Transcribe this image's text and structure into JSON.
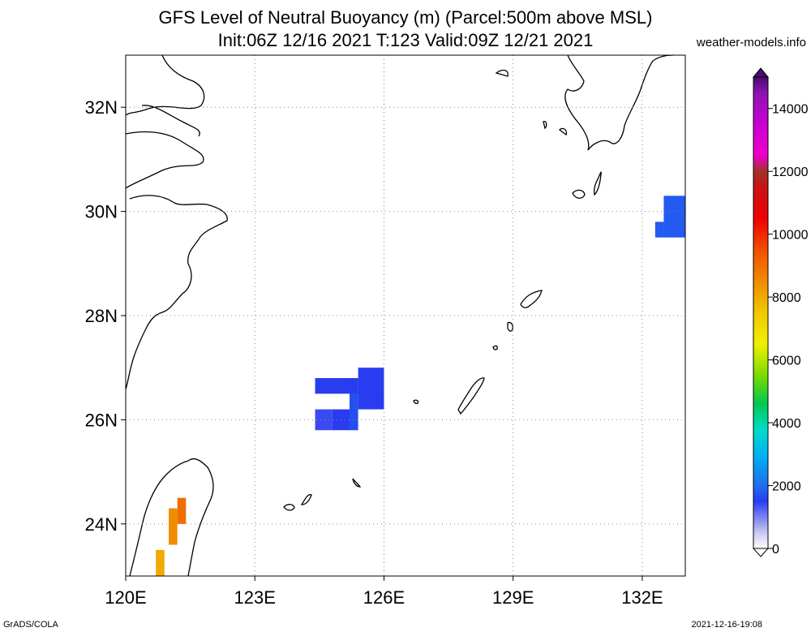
{
  "title_line1": "GFS Level of Neutral Buoyancy (m) (Parcel:500m above MSL)",
  "title_line2": "Init:06Z 12/16 2021 T:123 Valid:09Z 12/21 2021",
  "site": "weather-models.info",
  "footer_left": "GrADS/COLA",
  "footer_right": "2021-12-16-19:08",
  "map": {
    "lon_range": [
      120,
      133
    ],
    "lat_range": [
      23,
      33
    ],
    "lon_ticks": [
      {
        "value": 120,
        "label": "120E"
      },
      {
        "value": 123,
        "label": "123E"
      },
      {
        "value": 126,
        "label": "126E"
      },
      {
        "value": 129,
        "label": "129E"
      },
      {
        "value": 132,
        "label": "132E"
      }
    ],
    "lat_ticks": [
      {
        "value": 24,
        "label": "24N"
      },
      {
        "value": 26,
        "label": "26N"
      },
      {
        "value": 28,
        "label": "28N"
      },
      {
        "value": 30,
        "label": "30N"
      },
      {
        "value": 32,
        "label": "32N"
      }
    ],
    "grid": "dotted"
  },
  "colorbar": {
    "min": 0,
    "max": 15000,
    "ticks": [
      {
        "value": 0,
        "label": "0"
      },
      {
        "value": 2000,
        "label": "2000"
      },
      {
        "value": 4000,
        "label": "4000"
      },
      {
        "value": 6000,
        "label": "6000"
      },
      {
        "value": 8000,
        "label": "8000"
      },
      {
        "value": 10000,
        "label": "10000"
      },
      {
        "value": 12000,
        "label": "12000"
      },
      {
        "value": 14000,
        "label": "14000"
      }
    ],
    "stops": [
      {
        "value": 0,
        "color": "#ffffff"
      },
      {
        "value": 500,
        "color": "#c8c8f0"
      },
      {
        "value": 1500,
        "color": "#2a3cf0"
      },
      {
        "value": 2000,
        "color": "#1e6ef0"
      },
      {
        "value": 3000,
        "color": "#00b4f0"
      },
      {
        "value": 3800,
        "color": "#00dcc8"
      },
      {
        "value": 4600,
        "color": "#00c850"
      },
      {
        "value": 5500,
        "color": "#78dc00"
      },
      {
        "value": 6500,
        "color": "#f0f000"
      },
      {
        "value": 7500,
        "color": "#f0c800"
      },
      {
        "value": 8500,
        "color": "#f08c00"
      },
      {
        "value": 9500,
        "color": "#f05000"
      },
      {
        "value": 10500,
        "color": "#f00000"
      },
      {
        "value": 11500,
        "color": "#c81414"
      },
      {
        "value": 12000,
        "color": "#a03228"
      },
      {
        "value": 12500,
        "color": "#f000c8"
      },
      {
        "value": 13500,
        "color": "#c800d2"
      },
      {
        "value": 14500,
        "color": "#8c14b4"
      },
      {
        "value": 15000,
        "color": "#4b0a6e"
      }
    ]
  },
  "fields": [
    {
      "lon": [
        124.4,
        124.8
      ],
      "lat": [
        25.8,
        26.2
      ],
      "value": 1400
    },
    {
      "lon": [
        124.8,
        125.2
      ],
      "lat": [
        25.8,
        26.2
      ],
      "value": 1500
    },
    {
      "lon": [
        125.2,
        125.4
      ],
      "lat": [
        25.8,
        26.8
      ],
      "value": 1700
    },
    {
      "lon": [
        124.4,
        125.4
      ],
      "lat": [
        26.5,
        26.8
      ],
      "value": 1500
    },
    {
      "lon": [
        125.4,
        126.0
      ],
      "lat": [
        26.2,
        27.0
      ],
      "value": 1500
    },
    {
      "lon": [
        132.5,
        133.0
      ],
      "lat": [
        29.5,
        30.3
      ],
      "value": 1800
    },
    {
      "lon": [
        132.3,
        132.5
      ],
      "lat": [
        29.5,
        29.8
      ],
      "value": 1800
    },
    {
      "lon": [
        121.0,
        121.2
      ],
      "lat": [
        23.6,
        24.3
      ],
      "value": 8500
    },
    {
      "lon": [
        121.2,
        121.4
      ],
      "lat": [
        24.0,
        24.5
      ],
      "value": 9000
    },
    {
      "lon": [
        120.7,
        120.9
      ],
      "lat": [
        23.0,
        23.5
      ],
      "value": 8000
    }
  ]
}
